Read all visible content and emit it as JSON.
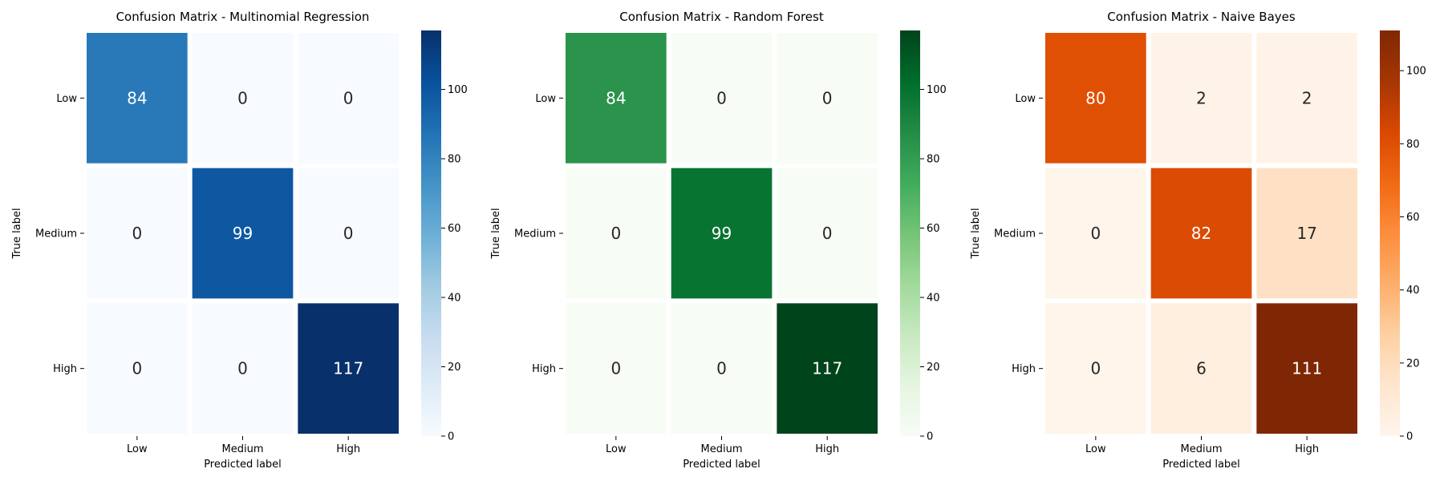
{
  "chart_data": [
    {
      "type": "heatmap",
      "title": "Confusion Matrix - Multinomial Regression",
      "xlabel": "Predicted label",
      "ylabel": "True label",
      "x_categories": [
        "Low",
        "Medium",
        "High"
      ],
      "y_categories": [
        "Low",
        "Medium",
        "High"
      ],
      "values": [
        [
          84,
          0,
          0
        ],
        [
          0,
          99,
          0
        ],
        [
          0,
          0,
          117
        ]
      ],
      "colorbar": {
        "min": 0,
        "max": 117,
        "ticks": [
          0,
          20,
          40,
          60,
          80,
          100
        ]
      },
      "colormap": "Blues",
      "colormap_stops": [
        "#f7fbff",
        "#deebf7",
        "#c6dbef",
        "#9ecae1",
        "#6baed6",
        "#4292c6",
        "#2171b5",
        "#08519c",
        "#08306b"
      ]
    },
    {
      "type": "heatmap",
      "title": "Confusion Matrix - Random Forest",
      "xlabel": "Predicted label",
      "ylabel": "True label",
      "x_categories": [
        "Low",
        "Medium",
        "High"
      ],
      "y_categories": [
        "Low",
        "Medium",
        "High"
      ],
      "values": [
        [
          84,
          0,
          0
        ],
        [
          0,
          99,
          0
        ],
        [
          0,
          0,
          117
        ]
      ],
      "colorbar": {
        "min": 0,
        "max": 117,
        "ticks": [
          0,
          20,
          40,
          60,
          80,
          100
        ]
      },
      "colormap": "Greens",
      "colormap_stops": [
        "#f7fcf5",
        "#e5f5e0",
        "#c7e9c0",
        "#a1d99b",
        "#74c476",
        "#41ab5d",
        "#238b45",
        "#006d2c",
        "#00441b"
      ]
    },
    {
      "type": "heatmap",
      "title": "Confusion Matrix - Naive Bayes",
      "xlabel": "Predicted label",
      "ylabel": "True label",
      "x_categories": [
        "Low",
        "Medium",
        "High"
      ],
      "y_categories": [
        "Low",
        "Medium",
        "High"
      ],
      "values": [
        [
          80,
          2,
          2
        ],
        [
          0,
          82,
          17
        ],
        [
          0,
          6,
          111
        ]
      ],
      "colorbar": {
        "min": 0,
        "max": 111,
        "ticks": [
          0,
          20,
          40,
          60,
          80,
          100
        ]
      },
      "colormap": "Oranges",
      "colormap_stops": [
        "#fff5eb",
        "#fee6ce",
        "#fdd0a2",
        "#fdae6b",
        "#fd8d3c",
        "#f16913",
        "#d94801",
        "#a63603",
        "#7f2704"
      ]
    }
  ]
}
